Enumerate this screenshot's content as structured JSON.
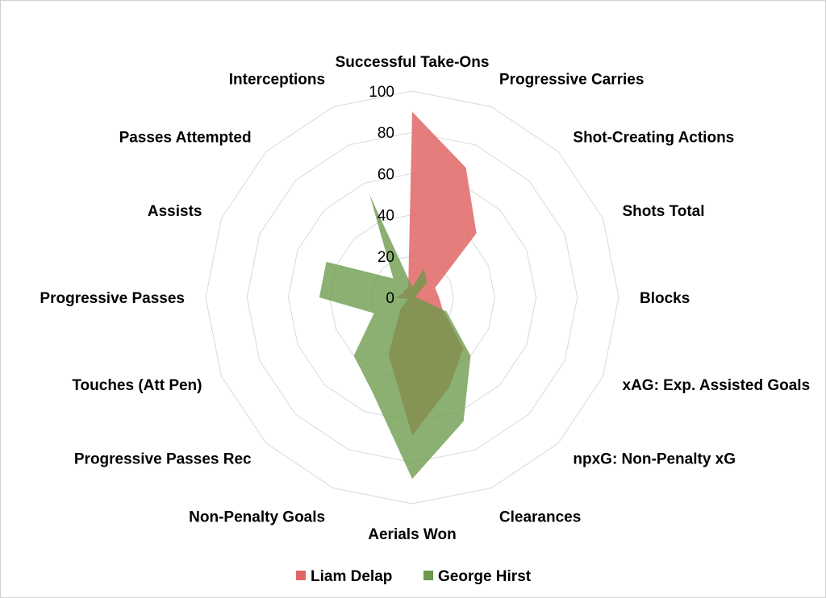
{
  "chart_data": {
    "type": "radar",
    "title": "",
    "categories": [
      "Successful Take-Ons",
      "Progressive Carries",
      "Shot-Creating Actions",
      "Shots Total",
      "Blocks",
      "xAG: Exp. Assisted Goals",
      "npxG: Non-Penalty xG",
      "Clearances",
      "Aerials Won",
      "Non-Penalty Goals",
      "Progressive Passes Rec",
      "Touches (Att Pen)",
      "Progressive Passes",
      "Assists",
      "Passes Attempted",
      "Interceptions"
    ],
    "rlim": [
      0,
      100
    ],
    "ticks": [
      "0",
      "20",
      "40",
      "60",
      "80",
      "100"
    ],
    "tick_values": [
      0,
      20,
      40,
      60,
      80,
      100
    ],
    "grid": true,
    "legend_position": "bottom",
    "series": [
      {
        "name": "Liam Delap",
        "color": "#e06666",
        "values": [
          90,
          68,
          44,
          12,
          13,
          16,
          35,
          47,
          67,
          30,
          8,
          2,
          8,
          5,
          5,
          5
        ]
      },
      {
        "name": "George Hirst",
        "color": "#6a9a4a",
        "values": [
          5,
          15,
          10,
          2,
          2,
          18,
          40,
          65,
          88,
          50,
          40,
          20,
          45,
          45,
          13,
          54
        ]
      }
    ]
  }
}
